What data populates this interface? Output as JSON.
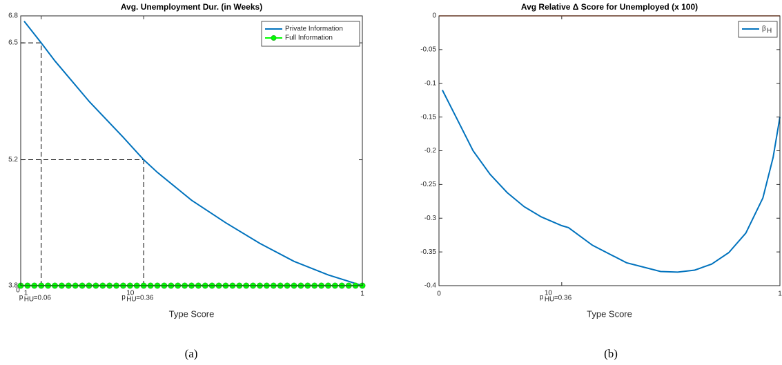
{
  "chart_data": [
    {
      "type": "line",
      "title": "Avg. Unemployment Dur. (in Weeks)",
      "x_label": "Type Score",
      "xlim": [
        0,
        1
      ],
      "ylim": [
        3.8,
        6.8
      ],
      "xticks": [
        0,
        {
          "value": 0.06,
          "label": "=0.06",
          "symbol": "p",
          "sup": "1",
          "sub": "HU"
        },
        {
          "value": 0.36,
          "label": "=0.36",
          "symbol": "p",
          "sup": "10",
          "sub": "HU"
        },
        1
      ],
      "yticks": [
        3.8,
        5.2,
        6.5,
        6.8
      ],
      "guides": true,
      "legend": "northeast",
      "series": [
        {
          "name": "Private Information",
          "color": "#0072bd",
          "x": [
            0.01,
            0.06,
            0.1,
            0.2,
            0.3,
            0.36,
            0.4,
            0.5,
            0.6,
            0.7,
            0.8,
            0.9,
            1.0
          ],
          "values": [
            6.74,
            6.5,
            6.3,
            5.85,
            5.45,
            5.2,
            5.06,
            4.75,
            4.5,
            4.27,
            4.07,
            3.92,
            3.8
          ]
        },
        {
          "name": "Full Information",
          "color": "#00ff00",
          "marker": "o",
          "x": [
            0,
            0.02,
            0.04,
            0.06,
            0.08,
            0.1,
            0.12,
            0.14,
            0.16,
            0.18,
            0.2,
            0.22,
            0.24,
            0.26,
            0.28,
            0.3,
            0.32,
            0.34,
            0.36,
            0.38,
            0.4,
            0.42,
            0.44,
            0.46,
            0.48,
            0.5,
            0.52,
            0.54,
            0.56,
            0.58,
            0.6,
            0.62,
            0.64,
            0.66,
            0.68,
            0.7,
            0.72,
            0.74,
            0.76,
            0.78,
            0.8,
            0.82,
            0.84,
            0.86,
            0.88,
            0.9,
            0.92,
            0.94,
            0.96,
            0.98,
            1.0
          ],
          "values": [
            3.8,
            3.8,
            3.8,
            3.8,
            3.8,
            3.8,
            3.8,
            3.8,
            3.8,
            3.8,
            3.8,
            3.8,
            3.8,
            3.8,
            3.8,
            3.8,
            3.8,
            3.8,
            3.8,
            3.8,
            3.8,
            3.8,
            3.8,
            3.8,
            3.8,
            3.8,
            3.8,
            3.8,
            3.8,
            3.8,
            3.8,
            3.8,
            3.8,
            3.8,
            3.8,
            3.8,
            3.8,
            3.8,
            3.8,
            3.8,
            3.8,
            3.8,
            3.8,
            3.8,
            3.8,
            3.8,
            3.8,
            3.8,
            3.8,
            3.8,
            3.8
          ]
        }
      ]
    },
    {
      "type": "line",
      "title": "Avg Relative Δ Score for Unemployed (x 100)",
      "x_label": "Type Score",
      "xlim": [
        0,
        1
      ],
      "ylim": [
        -0.4,
        0
      ],
      "xticks": [
        0,
        {
          "value": 0.36,
          "label": "=0.36",
          "symbol": "p",
          "sup": "10",
          "sub": "HU"
        },
        1
      ],
      "yticks": [
        -0.4,
        -0.35,
        -0.3,
        -0.25,
        -0.2,
        -0.15,
        -0.1,
        -0.05,
        0
      ],
      "guides": false,
      "legend": "northeast",
      "reference_line": {
        "y": 0,
        "color": "#d95319"
      },
      "series": [
        {
          "name": "β",
          "name_sub": "H",
          "color": "#0072bd",
          "x": [
            0.01,
            0.05,
            0.1,
            0.15,
            0.2,
            0.25,
            0.3,
            0.36,
            0.38,
            0.45,
            0.55,
            0.65,
            0.7,
            0.75,
            0.8,
            0.85,
            0.9,
            0.95,
            0.98,
            1.0
          ],
          "values": [
            -0.11,
            -0.15,
            -0.2,
            -0.235,
            -0.262,
            -0.283,
            -0.298,
            -0.311,
            -0.314,
            -0.34,
            -0.366,
            -0.379,
            -0.38,
            -0.377,
            -0.368,
            -0.351,
            -0.322,
            -0.27,
            -0.21,
            -0.15
          ]
        }
      ]
    }
  ],
  "captions": [
    "(a)",
    "(b)"
  ]
}
